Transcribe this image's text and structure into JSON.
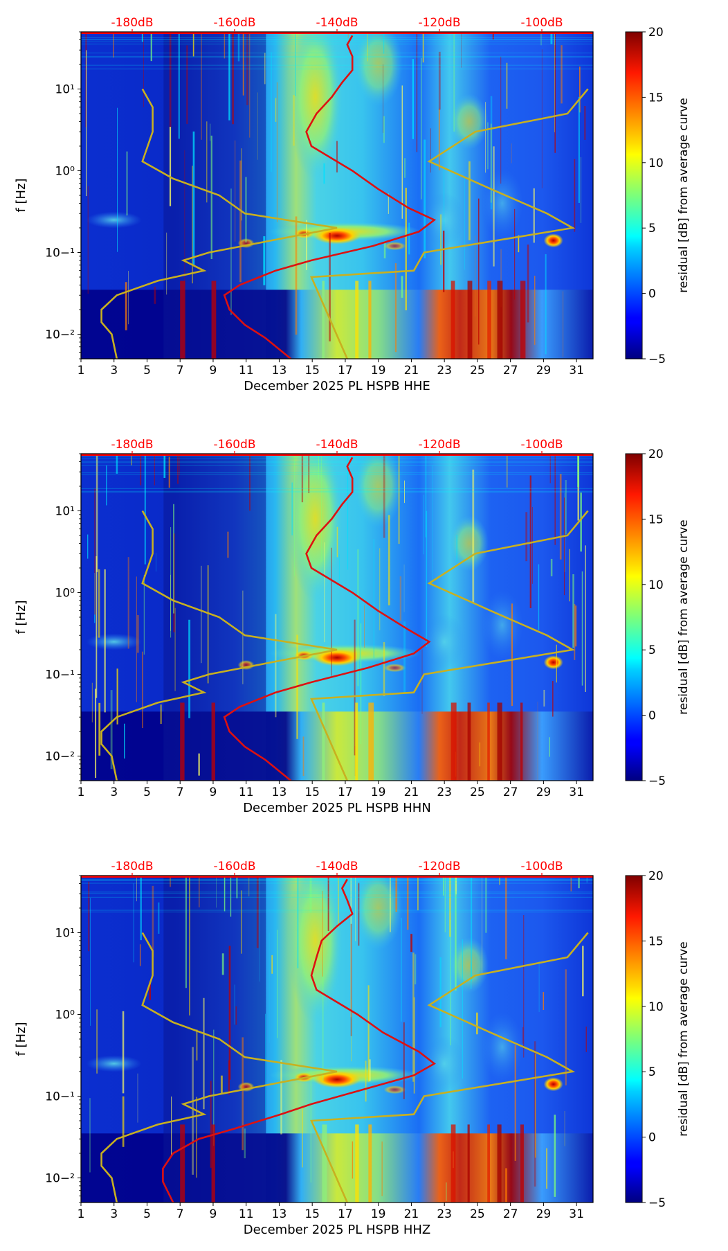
{
  "colors": {
    "dB_label": "#ff0000",
    "average_curve": "#dd1111",
    "model_curves": "#c8b020",
    "axis": "#000000"
  },
  "colorbar": {
    "label": "residual [dB] from average curve",
    "ticks": [
      "20",
      "15",
      "10",
      "5",
      "0",
      "−5"
    ],
    "range": [
      -5,
      20
    ],
    "colormap": "jet"
  },
  "chart_data": [
    {
      "type": "heatmap",
      "xlabel": "December 2025 PL HSPB  HHE",
      "ylabel": "f [Hz]",
      "x_ticks": [
        "1",
        "3",
        "5",
        "7",
        "9",
        "11",
        "13",
        "15",
        "17",
        "19",
        "21",
        "23",
        "25",
        "27",
        "29",
        "31"
      ],
      "y_ticks": [
        "10−²",
        "10−¹",
        "10⁰",
        "10¹"
      ],
      "top_ticks": [
        "-180dB",
        "-160dB",
        "-140dB",
        "-120dB",
        "-100dB"
      ],
      "x_range_days": [
        1,
        32
      ],
      "y_range_hz": [
        0.005,
        50
      ],
      "top_range_db": [
        -190,
        -90
      ],
      "average_curve_db": [
        [
          0.005,
          -149
        ],
        [
          0.009,
          -154
        ],
        [
          0.013,
          -158
        ],
        [
          0.02,
          -161
        ],
        [
          0.03,
          -162
        ],
        [
          0.04,
          -159
        ],
        [
          0.06,
          -152
        ],
        [
          0.08,
          -145
        ],
        [
          0.12,
          -133
        ],
        [
          0.18,
          -124
        ],
        [
          0.25,
          -121
        ],
        [
          0.35,
          -126
        ],
        [
          0.6,
          -132
        ],
        [
          1.0,
          -137
        ],
        [
          2.0,
          -145
        ],
        [
          3.0,
          -146
        ],
        [
          5.0,
          -144
        ],
        [
          8.0,
          -141
        ],
        [
          12.0,
          -139
        ],
        [
          17.0,
          -137
        ],
        [
          25.0,
          -137
        ],
        [
          35.0,
          -138
        ],
        [
          45.0,
          -137
        ]
      ]
    },
    {
      "type": "heatmap",
      "xlabel": "December 2025 PL HSPB  HHN",
      "ylabel": "f [Hz]",
      "x_ticks": [
        "1",
        "3",
        "5",
        "7",
        "9",
        "11",
        "13",
        "15",
        "17",
        "19",
        "21",
        "23",
        "25",
        "27",
        "29",
        "31"
      ],
      "y_ticks": [
        "10−²",
        "10−¹",
        "10⁰",
        "10¹"
      ],
      "top_ticks": [
        "-180dB",
        "-160dB",
        "-140dB",
        "-120dB",
        "-100dB"
      ],
      "x_range_days": [
        1,
        32
      ],
      "y_range_hz": [
        0.005,
        50
      ],
      "top_range_db": [
        -190,
        -90
      ],
      "average_curve_db": [
        [
          0.005,
          -149
        ],
        [
          0.009,
          -154
        ],
        [
          0.013,
          -158
        ],
        [
          0.02,
          -161
        ],
        [
          0.03,
          -162
        ],
        [
          0.04,
          -159
        ],
        [
          0.06,
          -152
        ],
        [
          0.08,
          -145
        ],
        [
          0.12,
          -134
        ],
        [
          0.18,
          -125
        ],
        [
          0.25,
          -122
        ],
        [
          0.35,
          -126
        ],
        [
          0.6,
          -132
        ],
        [
          1.0,
          -137
        ],
        [
          2.0,
          -145
        ],
        [
          3.0,
          -146
        ],
        [
          5.0,
          -144
        ],
        [
          8.0,
          -141
        ],
        [
          12.0,
          -139
        ],
        [
          17.0,
          -137
        ],
        [
          25.0,
          -137
        ],
        [
          35.0,
          -138
        ],
        [
          45.0,
          -137
        ]
      ]
    },
    {
      "type": "heatmap",
      "xlabel": "December 2025 PL HSPB  HHZ",
      "ylabel": "f [Hz]",
      "x_ticks": [
        "1",
        "3",
        "5",
        "7",
        "9",
        "11",
        "13",
        "15",
        "17",
        "19",
        "21",
        "23",
        "25",
        "27",
        "29",
        "31"
      ],
      "y_ticks": [
        "10−²",
        "10−¹",
        "10⁰",
        "10¹"
      ],
      "top_ticks": [
        "-180dB",
        "-160dB",
        "-140dB",
        "-120dB",
        "-100dB"
      ],
      "x_range_days": [
        1,
        32
      ],
      "y_range_hz": [
        0.005,
        50
      ],
      "top_range_db": [
        -190,
        -90
      ],
      "average_curve_db": [
        [
          0.005,
          -172
        ],
        [
          0.009,
          -174
        ],
        [
          0.013,
          -174
        ],
        [
          0.02,
          -172
        ],
        [
          0.03,
          -167
        ],
        [
          0.04,
          -160
        ],
        [
          0.06,
          -151
        ],
        [
          0.08,
          -145
        ],
        [
          0.12,
          -135
        ],
        [
          0.18,
          -125
        ],
        [
          0.25,
          -121
        ],
        [
          0.35,
          -124
        ],
        [
          0.6,
          -131
        ],
        [
          1.0,
          -136
        ],
        [
          2.0,
          -144
        ],
        [
          3.0,
          -145
        ],
        [
          5.0,
          -144
        ],
        [
          8.0,
          -143
        ],
        [
          12.0,
          -140
        ],
        [
          17.0,
          -137
        ],
        [
          25.0,
          -138
        ],
        [
          35.0,
          -139
        ],
        [
          45.0,
          -138
        ]
      ]
    }
  ],
  "model_curves_db": {
    "low_noise": [
      [
        0.005,
        -183
      ],
      [
        0.01,
        -184
      ],
      [
        0.014,
        -186
      ],
      [
        0.02,
        -186
      ],
      [
        0.03,
        -183
      ],
      [
        0.045,
        -175
      ],
      [
        0.06,
        -166
      ],
      [
        0.08,
        -170
      ],
      [
        0.1,
        -165
      ],
      [
        0.2,
        -140
      ],
      [
        0.3,
        -158
      ],
      [
        0.5,
        -163
      ],
      [
        0.8,
        -172
      ],
      [
        1.3,
        -178
      ],
      [
        3,
        -176
      ],
      [
        6,
        -176
      ],
      [
        10,
        -178
      ]
    ],
    "high_noise": [
      [
        0.005,
        -138
      ],
      [
        0.05,
        -145
      ],
      [
        0.06,
        -125
      ],
      [
        0.1,
        -123
      ],
      [
        0.2,
        -94
      ],
      [
        0.3,
        -99
      ],
      [
        0.6,
        -110
      ],
      [
        1.3,
        -122
      ],
      [
        3,
        -113
      ],
      [
        5,
        -95
      ],
      [
        10,
        -91
      ]
    ]
  }
}
